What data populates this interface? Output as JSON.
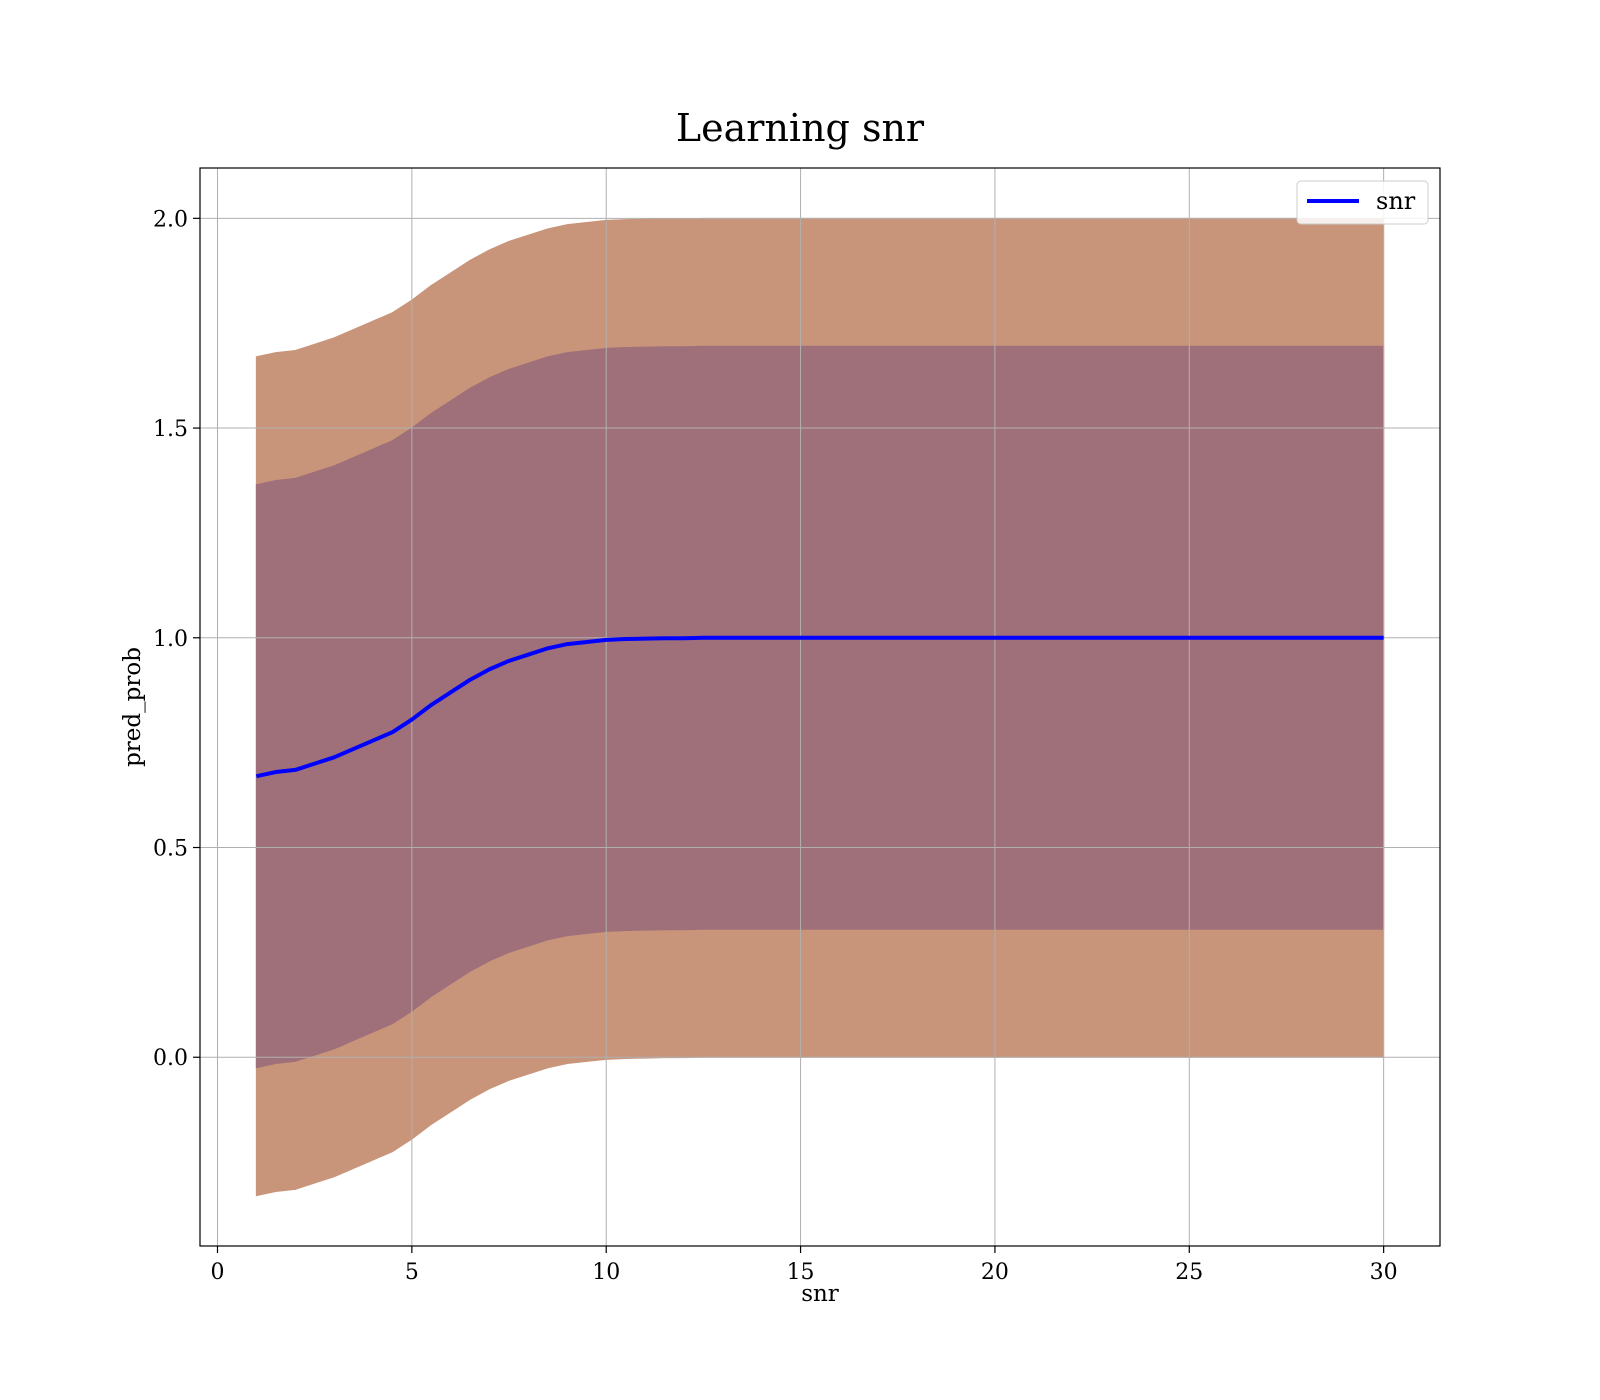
{
  "chart_data": {
    "type": "area",
    "title": "Learning snr",
    "xlabel": "snr",
    "ylabel": "pred_prob",
    "xlim": [
      -0.45,
      31.45
    ],
    "ylim": [
      -0.45,
      2.12
    ],
    "xticks": [
      0,
      5,
      10,
      15,
      20,
      25,
      30
    ],
    "yticks": [
      0.0,
      0.5,
      1.0,
      1.5,
      2.0
    ],
    "xtick_labels": [
      "0",
      "5",
      "10",
      "15",
      "20",
      "25",
      "30"
    ],
    "ytick_labels": [
      "0.0",
      "0.5",
      "1.0",
      "1.5",
      "2.0"
    ],
    "grid": true,
    "legend": {
      "position": "top-right",
      "entries": [
        "snr"
      ]
    },
    "x": [
      1,
      1.5,
      2,
      2.5,
      3,
      3.5,
      4,
      4.5,
      5,
      5.5,
      6,
      6.5,
      7,
      7.5,
      8,
      8.5,
      9,
      9.5,
      10,
      10.5,
      11,
      11.5,
      12,
      12.5,
      13,
      14,
      15,
      16,
      18,
      20,
      22,
      24,
      26,
      28,
      30
    ],
    "series": [
      {
        "name": "snr",
        "color": "#0000ff",
        "values": [
          0.67,
          0.68,
          0.685,
          0.7,
          0.715,
          0.735,
          0.755,
          0.775,
          0.805,
          0.84,
          0.87,
          0.9,
          0.925,
          0.945,
          0.96,
          0.975,
          0.985,
          0.99,
          0.995,
          0.997,
          0.998,
          0.999,
          0.999,
          1.0,
          1.0,
          1.0,
          1.0,
          1.0,
          1.0,
          1.0,
          1.0,
          1.0,
          1.0,
          1.0,
          1.0
        ]
      }
    ],
    "bands": [
      {
        "color": "#c8957a",
        "upper_offset": 1.0,
        "lower_offset": -1.0
      },
      {
        "color": "#a0707a",
        "upper_offset": 0.695,
        "lower_offset": -0.695
      }
    ]
  }
}
